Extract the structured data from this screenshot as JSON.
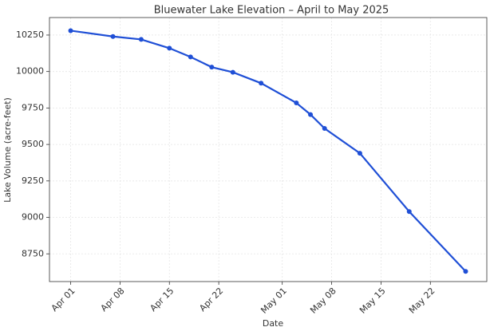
{
  "chart_data": {
    "type": "line",
    "title": "Bluewater Lake Elevation – April to May 2025",
    "x_label": "Date",
    "y_label": "Lake Volume (acre-feet)",
    "x": [
      "Apr 01",
      "Apr 07",
      "Apr 11",
      "Apr 15",
      "Apr 18",
      "Apr 21",
      "Apr 24",
      "Apr 28",
      "May 03",
      "May 05",
      "May 07",
      "May 12",
      "May 19",
      "May 27"
    ],
    "series": [
      {
        "name": "Lake Volume",
        "color": "#1f4fd6",
        "values": [
          10280,
          10240,
          10220,
          10160,
          10100,
          10030,
          9995,
          9920,
          9785,
          9705,
          9610,
          9440,
          9040,
          8630
        ]
      }
    ],
    "xlim": [
      "Mar 29",
      "May 30"
    ],
    "xticks": [
      "Apr 01",
      "Apr 08",
      "Apr 15",
      "Apr 22",
      "May 01",
      "May 08",
      "May 15",
      "May 22"
    ],
    "ylim": [
      8560,
      10370
    ],
    "yticks": [
      8750,
      9000,
      9250,
      9500,
      9750,
      10000,
      10250
    ],
    "grid": true
  }
}
